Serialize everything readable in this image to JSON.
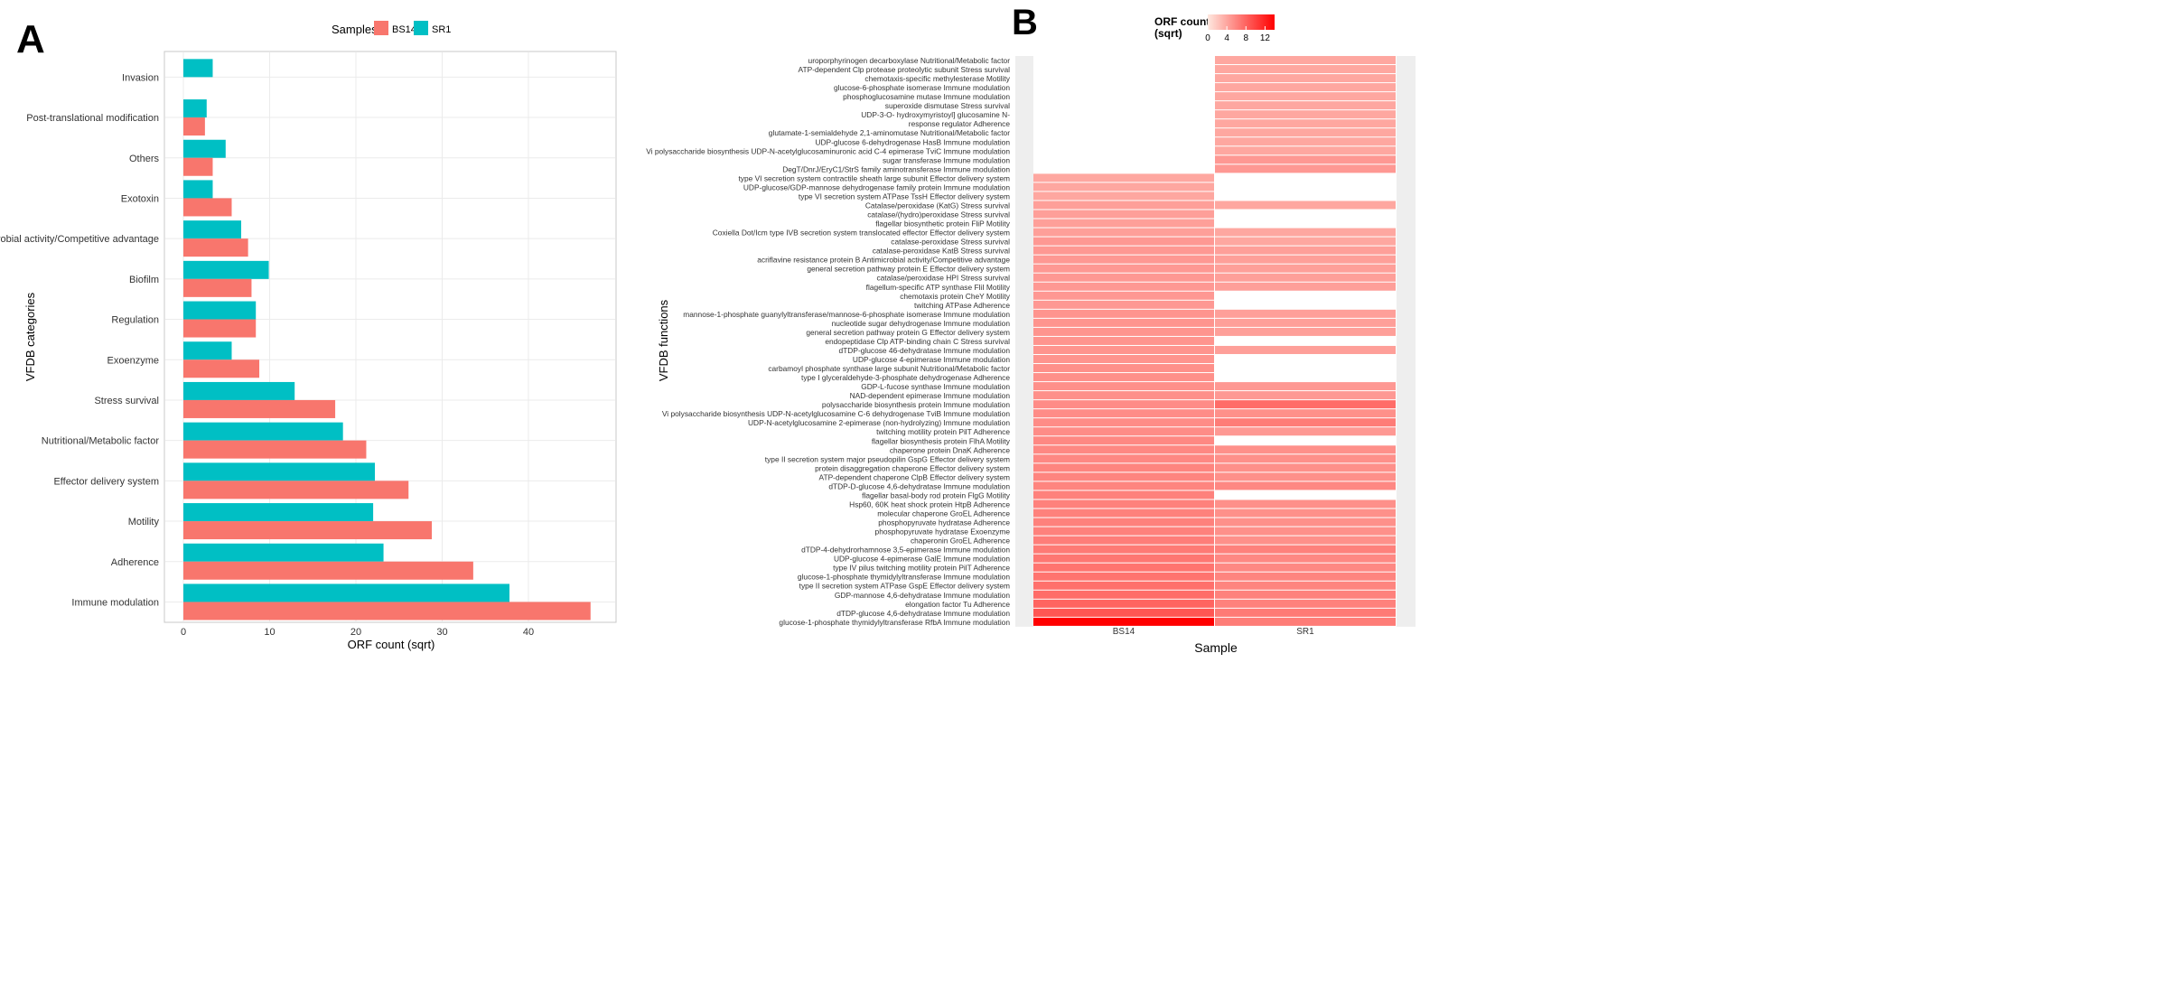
{
  "panel_labels": {
    "a": "A",
    "b": "B"
  },
  "colors": {
    "bs14": "#F8766D",
    "sr1": "#00BFC4",
    "panel_bg": "#FFFFFF",
    "grid": "#EBEBEB",
    "tile_na": "#EEEEEE",
    "heat_low": "#FEE8DF",
    "heat_high": "#FF0000"
  },
  "chart_data": [
    {
      "type": "bar",
      "orientation": "horizontal",
      "panel": "A",
      "xlabel": "ORF count (sqrt)",
      "ylabel": "VFDB categories",
      "xlim": [
        0,
        48
      ],
      "xticks": [
        0,
        10,
        20,
        30,
        40
      ],
      "legend_title": "Samples",
      "legend_position": "top",
      "categories": [
        "Invasion",
        "Post-translational modification",
        "Others",
        "Exotoxin",
        "Antimicrobial activity/Competitive advantage",
        "Biofilm",
        "Regulation",
        "Exoenzyme",
        "Stress survival",
        "Nutritional/Metabolic factor",
        "Effector delivery system",
        "Motility",
        "Adherence",
        "Immune modulation"
      ],
      "series": [
        {
          "name": "BS14",
          "values": [
            0,
            2.5,
            3.4,
            5.6,
            7.5,
            7.9,
            8.4,
            8.8,
            17.6,
            21.2,
            26.1,
            28.8,
            33.6,
            47.2
          ]
        },
        {
          "name": "SR1",
          "values": [
            3.4,
            2.7,
            4.9,
            3.4,
            6.7,
            9.9,
            8.4,
            5.6,
            12.9,
            18.5,
            22.2,
            22.0,
            23.2,
            37.8
          ]
        }
      ]
    },
    {
      "type": "heatmap",
      "panel": "B",
      "xlabel": "Sample",
      "ylabel": "VFDB functions",
      "x": [
        "BS14",
        "SR1"
      ],
      "legend_title": "ORF count\n(sqrt)",
      "legend_title_lines": [
        "ORF count",
        "(sqrt)"
      ],
      "legend_ticks": [
        0,
        4,
        8,
        12
      ],
      "value_range": [
        0,
        14
      ],
      "legend_position": "top",
      "rows": [
        {
          "label": "uroporphyrinogen decarboxylase   Nutritional/Metabolic factor",
          "BS14": null,
          "SR1": 1.4
        },
        {
          "label": "ATP-dependent Clp protease proteolytic subunit   Stress survival",
          "BS14": null,
          "SR1": 1.4
        },
        {
          "label": "chemotaxis-specific methylesterase   Motility",
          "BS14": null,
          "SR1": 1.4
        },
        {
          "label": "glucose-6-phosphate isomerase   Immune modulation",
          "BS14": null,
          "SR1": 1.4
        },
        {
          "label": "phosphoglucosamine mutase   Immune modulation",
          "BS14": null,
          "SR1": 1.4
        },
        {
          "label": "superoxide dismutase   Stress survival",
          "BS14": null,
          "SR1": 1.4
        },
        {
          "label": "UDP-3-O- hydroxymyristoyl] glucosamine N-",
          "BS14": null,
          "SR1": 1.4
        },
        {
          "label": "response regulator   Adherence",
          "BS14": null,
          "SR1": 1.4
        },
        {
          "label": "glutamate-1-semialdehyde 2,1-aminomutase   Nutritional/Metabolic factor",
          "BS14": null,
          "SR1": 1.4
        },
        {
          "label": "UDP-glucose 6-dehydrogenase HasB   Immune modulation",
          "BS14": null,
          "SR1": 1.4
        },
        {
          "label": "Vi polysaccharide biosynthesis UDP-N-acetylglucosaminuronic acid C-4 epimerase TviC   Immune modulation",
          "BS14": null,
          "SR1": 1.4
        },
        {
          "label": "sugar transferase   Immune modulation",
          "BS14": null,
          "SR1": 2.0
        },
        {
          "label": "DegT/DnrJ/EryC1/StrS family aminotransferase   Immune modulation",
          "BS14": null,
          "SR1": 2.0
        },
        {
          "label": "type VI secretion system contractile sheath large subunit   Effector delivery system",
          "BS14": 1.4,
          "SR1": null
        },
        {
          "label": "UDP-glucose/GDP-mannose dehydrogenase family protein   Immune modulation",
          "BS14": 1.4,
          "SR1": null
        },
        {
          "label": "type VI secretion system ATPase TssH   Effector delivery system",
          "BS14": 1.4,
          "SR1": null
        },
        {
          "label": "Catalase/peroxidase (KatG)   Stress survival",
          "BS14": 1.7,
          "SR1": 1.4
        },
        {
          "label": "catalase/(hydro)peroxidase   Stress survival",
          "BS14": 1.7,
          "SR1": null
        },
        {
          "label": "flagellar biosynthetic protein FliP   Motility",
          "BS14": 1.7,
          "SR1": null
        },
        {
          "label": "Coxiella Dot/Icm type IVB secretion system translocated effector   Effector delivery system",
          "BS14": 1.7,
          "SR1": 1.4
        },
        {
          "label": "catalase-peroxidase   Stress survival",
          "BS14": 2.0,
          "SR1": 1.4
        },
        {
          "label": "catalase-peroxidase KatB   Stress survival",
          "BS14": 2.0,
          "SR1": 1.7
        },
        {
          "label": "acriflavine resistance protein B   Antimicrobial activity/Competitive advantage",
          "BS14": 2.0,
          "SR1": 1.7
        },
        {
          "label": "general secretion pathway protein E   Effector delivery system",
          "BS14": 2.0,
          "SR1": 1.7
        },
        {
          "label": "catalase/peroxidase HPI   Stress survival",
          "BS14": 2.0,
          "SR1": 1.7
        },
        {
          "label": "flagellum-specific ATP synthase FliI   Motility",
          "BS14": 2.0,
          "SR1": 1.7
        },
        {
          "label": "chemotaxis protein CheY   Motility",
          "BS14": 2.0,
          "SR1": null
        },
        {
          "label": "twitching ATPase   Adherence",
          "BS14": 2.0,
          "SR1": null
        },
        {
          "label": "mannose-1-phosphate guanylyltransferase/mannose-6-phosphate isomerase   Immune modulation",
          "BS14": 2.2,
          "SR1": 1.7
        },
        {
          "label": "nucleotide sugar dehydrogenase   Immune modulation",
          "BS14": 2.2,
          "SR1": 1.7
        },
        {
          "label": "general secretion pathway protein G   Effector delivery system",
          "BS14": 2.2,
          "SR1": 1.7
        },
        {
          "label": "endopeptidase Clp ATP-binding chain C   Stress survival",
          "BS14": 2.2,
          "SR1": null
        },
        {
          "label": "dTDP-glucose 46-dehydratase   Immune modulation",
          "BS14": 2.2,
          "SR1": 1.7
        },
        {
          "label": "UDP-glucose 4-epimerase   Immune modulation",
          "BS14": 2.2,
          "SR1": null
        },
        {
          "label": "carbamoyl phosphate synthase large subunit   Nutritional/Metabolic factor",
          "BS14": 2.4,
          "SR1": null
        },
        {
          "label": "type I glyceraldehyde-3-phosphate dehydrogenase   Adherence",
          "BS14": 2.4,
          "SR1": null
        },
        {
          "label": "GDP-L-fucose synthase   Immune modulation",
          "BS14": 2.4,
          "SR1": 2.0
        },
        {
          "label": "NAD-dependent epimerase   Immune modulation",
          "BS14": 2.4,
          "SR1": 2.0
        },
        {
          "label": "polysaccharide biosynthesis protein   Immune modulation",
          "BS14": 2.6,
          "SR1": 4.5
        },
        {
          "label": "Vi polysaccharide biosynthesis UDP-N-acetylglucosamine C-6 dehydrogenase TviB   Immune modulation",
          "BS14": 2.6,
          "SR1": 2.4
        },
        {
          "label": "UDP-N-acetylglucosamine 2-epimerase (non-hydrolyzing)   Immune modulation",
          "BS14": 2.6,
          "SR1": 3.5
        },
        {
          "label": "twitching motility protein PilT   Adherence",
          "BS14": 2.6,
          "SR1": 2.0
        },
        {
          "label": "flagellar biosynthesis protein FlhA   Motility",
          "BS14": 2.8,
          "SR1": null
        },
        {
          "label": "chaperone protein DnaK   Adherence",
          "BS14": 2.8,
          "SR1": 2.4
        },
        {
          "label": "type II secretion system major pseudopilin GspG   Effector delivery system",
          "BS14": 2.8,
          "SR1": 2.4
        },
        {
          "label": "protein disaggregation chaperone   Effector delivery system",
          "BS14": 3.0,
          "SR1": 2.4
        },
        {
          "label": "ATP-dependent chaperone ClpB   Effector delivery system",
          "BS14": 3.0,
          "SR1": 2.4
        },
        {
          "label": "dTDP-D-glucose 4,6-dehydratase   Immune modulation",
          "BS14": 3.0,
          "SR1": 2.8
        },
        {
          "label": "flagellar basal-body rod protein FlgG   Motility",
          "BS14": 3.2,
          "SR1": null
        },
        {
          "label": "Hsp60, 60K heat shock protein HtpB   Adherence",
          "BS14": 3.2,
          "SR1": 2.4
        },
        {
          "label": "molecular chaperone GroEL   Adherence",
          "BS14": 3.2,
          "SR1": 2.4
        },
        {
          "label": "phosphopyruvate hydratase   Adherence",
          "BS14": 3.2,
          "SR1": 2.4
        },
        {
          "label": "phosphopyruvate hydratase   Exoenzyme",
          "BS14": 3.2,
          "SR1": 2.4
        },
        {
          "label": "chaperonin GroEL   Adherence",
          "BS14": 3.4,
          "SR1": 2.4
        },
        {
          "label": "dTDP-4-dehydrorhamnose 3,5-epimerase   Immune modulation",
          "BS14": 3.6,
          "SR1": 3.2
        },
        {
          "label": "UDP-glucose 4-epimerase GalE   Immune modulation",
          "BS14": 3.8,
          "SR1": 2.8
        },
        {
          "label": "type IV pilus twitching motility protein PilT   Adherence",
          "BS14": 4.0,
          "SR1": 2.8
        },
        {
          "label": "glucose-1-phosphate thymidylyltransferase   Immune modulation",
          "BS14": 4.0,
          "SR1": 3.0
        },
        {
          "label": "type II secretion system ATPase GspE   Effector delivery system",
          "BS14": 4.2,
          "SR1": 3.0
        },
        {
          "label": "GDP-mannose 4,6-dehydratase   Immune modulation",
          "BS14": 4.5,
          "SR1": 3.2
        },
        {
          "label": "elongation factor Tu   Adherence",
          "BS14": 5.0,
          "SR1": 3.2
        },
        {
          "label": "dTDP-glucose 4,6-dehydratase   Immune modulation",
          "BS14": 6.0,
          "SR1": 3.6
        },
        {
          "label": "glucose-1-phosphate thymidylyltransferase RfbA   Immune modulation",
          "BS14": 14.0,
          "SR1": 3.5
        }
      ]
    }
  ]
}
